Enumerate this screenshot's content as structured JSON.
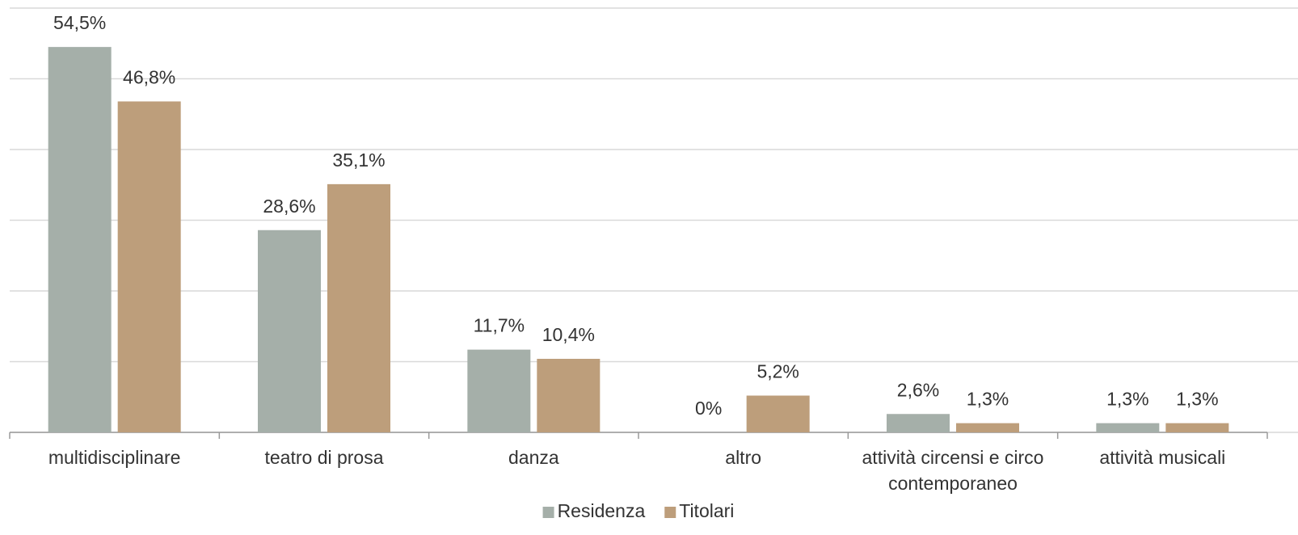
{
  "chart_data": {
    "type": "bar",
    "categories": [
      "multidisciplinare",
      "teatro di prosa",
      "danza",
      "altro",
      "attività circensi e circo contemporaneo",
      "attività musicali"
    ],
    "series": [
      {
        "name": "Residenza",
        "color": "#a5afa9",
        "values": [
          54.5,
          28.6,
          11.7,
          0,
          2.6,
          1.3
        ],
        "value_labels": [
          "54,5%",
          "28,6%",
          "11,7%",
          "0%",
          "2,6%",
          "1,3%"
        ]
      },
      {
        "name": "Titolari",
        "color": "#bd9e7b",
        "values": [
          46.8,
          35.1,
          10.4,
          5.2,
          1.3,
          1.3
        ],
        "value_labels": [
          "46,8%",
          "35,1%",
          "10,4%",
          "5,2%",
          "1,3%",
          "1,3%"
        ]
      }
    ],
    "ylim": [
      0,
      60
    ],
    "yticks": [
      0,
      10,
      20,
      30,
      40,
      50,
      60
    ],
    "grid": true,
    "legend": "bottom"
  }
}
